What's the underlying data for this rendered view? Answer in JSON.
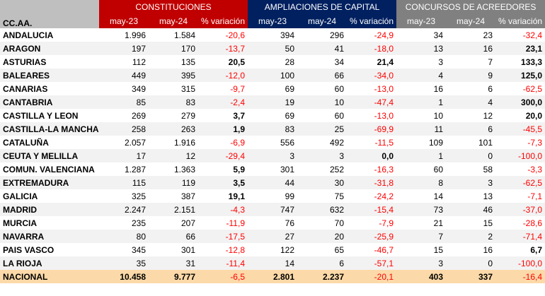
{
  "header": {
    "region_label": "CC.AA.",
    "groups": [
      "CONSTITUCIONES",
      "AMPLIACIONES DE CAPITAL",
      "CONCURSOS DE ACREEDORES"
    ],
    "subcols": [
      "may-23",
      "may-24",
      "% variación"
    ]
  },
  "colors": {
    "constituciones": "#c00000",
    "ampliaciones": "#002060",
    "concursos": "#808080",
    "total_row": "#fcd9a8",
    "negative": "#ff0000"
  },
  "rows": [
    [
      "ANDALUCIA",
      "1.996",
      "1.584",
      "-20,6",
      "394",
      "296",
      "-24,9",
      "34",
      "23",
      "-32,4"
    ],
    [
      "ARAGON",
      "197",
      "170",
      "-13,7",
      "50",
      "41",
      "-18,0",
      "13",
      "16",
      "23,1"
    ],
    [
      "ASTURIAS",
      "112",
      "135",
      "20,5",
      "28",
      "34",
      "21,4",
      "3",
      "7",
      "133,3"
    ],
    [
      "BALEARES",
      "449",
      "395",
      "-12,0",
      "100",
      "66",
      "-34,0",
      "4",
      "9",
      "125,0"
    ],
    [
      "CANARIAS",
      "349",
      "315",
      "-9,7",
      "69",
      "60",
      "-13,0",
      "16",
      "6",
      "-62,5"
    ],
    [
      "CANTABRIA",
      "85",
      "83",
      "-2,4",
      "19",
      "10",
      "-47,4",
      "1",
      "4",
      "300,0"
    ],
    [
      "CASTILLA Y LEON",
      "269",
      "279",
      "3,7",
      "69",
      "60",
      "-13,0",
      "10",
      "12",
      "20,0"
    ],
    [
      "CASTILLA-LA MANCHA",
      "258",
      "263",
      "1,9",
      "83",
      "25",
      "-69,9",
      "11",
      "6",
      "-45,5"
    ],
    [
      "CATALUÑA",
      "2.057",
      "1.916",
      "-6,9",
      "556",
      "492",
      "-11,5",
      "109",
      "101",
      "-7,3"
    ],
    [
      "CEUTA Y MELILLA",
      "17",
      "12",
      "-29,4",
      "3",
      "3",
      "0,0",
      "1",
      "0",
      "-100,0"
    ],
    [
      "COMUN. VALENCIANA",
      "1.287",
      "1.363",
      "5,9",
      "301",
      "252",
      "-16,3",
      "60",
      "58",
      "-3,3"
    ],
    [
      "EXTREMADURA",
      "115",
      "119",
      "3,5",
      "44",
      "30",
      "-31,8",
      "8",
      "3",
      "-62,5"
    ],
    [
      "GALICIA",
      "325",
      "387",
      "19,1",
      "99",
      "75",
      "-24,2",
      "14",
      "13",
      "-7,1"
    ],
    [
      "MADRID",
      "2.247",
      "2.151",
      "-4,3",
      "747",
      "632",
      "-15,4",
      "73",
      "46",
      "-37,0"
    ],
    [
      "MURCIA",
      "235",
      "207",
      "-11,9",
      "76",
      "70",
      "-7,9",
      "21",
      "15",
      "-28,6"
    ],
    [
      "NAVARRA",
      "80",
      "66",
      "-17,5",
      "27",
      "20",
      "-25,9",
      "7",
      "2",
      "-71,4"
    ],
    [
      "PAIS VASCO",
      "345",
      "301",
      "-12,8",
      "122",
      "65",
      "-46,7",
      "15",
      "16",
      "6,7"
    ],
    [
      "LA RIOJA",
      "35",
      "31",
      "-11,4",
      "14",
      "6",
      "-57,1",
      "3",
      "0",
      "-100,0"
    ]
  ],
  "total": [
    "NACIONAL",
    "10.458",
    "9.777",
    "-6,5",
    "2.801",
    "2.237",
    "-20,1",
    "403",
    "337",
    "-16,4"
  ]
}
